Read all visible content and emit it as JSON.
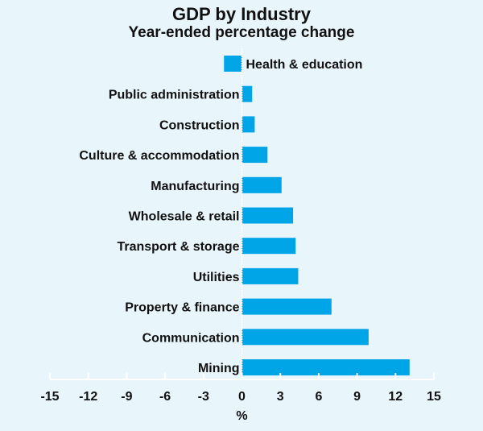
{
  "chart_data": {
    "type": "bar",
    "orientation": "horizontal",
    "title": "GDP by Industry",
    "subtitle": "Year-ended percentage change",
    "xlabel": "%",
    "ylabel": "",
    "xlim": [
      -15,
      15
    ],
    "xticks": [
      -15,
      -12,
      -9,
      -6,
      -3,
      0,
      3,
      6,
      9,
      12,
      15
    ],
    "grid": false,
    "bar_color": "#00a5e8",
    "categories": [
      "Health & education",
      "Public administration",
      "Construction",
      "Culture & accommodation",
      "Manufacturing",
      "Wholesale & retail",
      "Transport & storage",
      "Utilities",
      "Property & finance",
      "Communication",
      "Mining"
    ],
    "values": [
      -1.4,
      0.8,
      1.0,
      2.0,
      3.1,
      4.0,
      4.2,
      4.4,
      7.0,
      9.9,
      13.1
    ]
  }
}
